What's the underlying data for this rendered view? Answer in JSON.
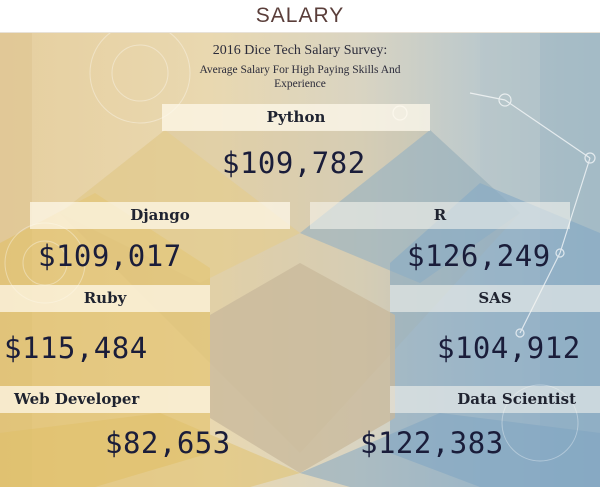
{
  "header": {
    "label": "SALARY"
  },
  "survey": {
    "title": "2016 Dice Tech Salary Survey:",
    "subtitle_line1": "Average Salary For High Paying Skills And",
    "subtitle_line2": "Experience"
  },
  "skills": [
    {
      "name": "Python",
      "salary": "$109,782"
    },
    {
      "name": "Django",
      "salary": "$109,017"
    },
    {
      "name": "R",
      "salary": "$126,249"
    },
    {
      "name": "Ruby",
      "salary": "$115,484"
    },
    {
      "name": "SAS",
      "salary": "$104,912"
    },
    {
      "name": "Web Developer",
      "salary": "$82,653"
    },
    {
      "name": "Data Scientist",
      "salary": "$122,383"
    }
  ],
  "colors": {
    "gold": "#e3c477",
    "blue": "#8fb0c8",
    "tan": "#c9b89a",
    "text": "#1a1d3a"
  }
}
